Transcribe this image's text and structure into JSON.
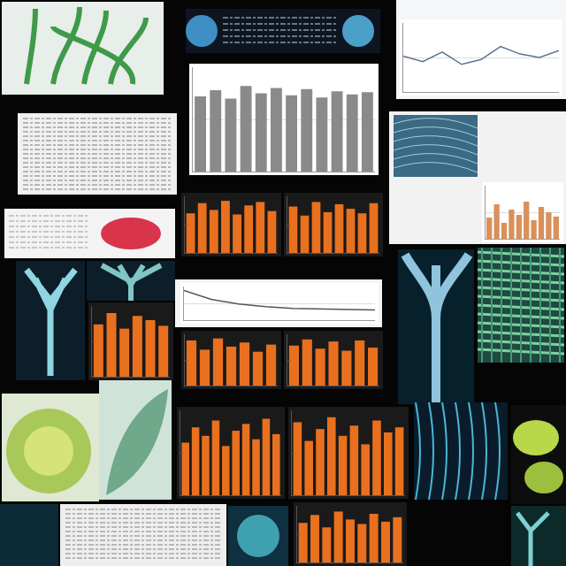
{
  "chart_data": [
    {
      "type": "line",
      "categories": [
        null,
        null,
        null,
        null,
        null,
        null,
        null,
        null,
        null
      ],
      "values": [
        52,
        44,
        58,
        40,
        47,
        66,
        55,
        50,
        60
      ],
      "color": "#5b7391",
      "ylim": [
        0,
        100
      ],
      "yticks": [
        0,
        50,
        100
      ],
      "grid": true,
      "tick_labels": false
    },
    {
      "type": "bar",
      "categories": [
        null,
        null,
        null,
        null,
        null,
        null,
        null,
        null,
        null,
        null,
        null,
        null
      ],
      "values": [
        72,
        78,
        70,
        82,
        75,
        80,
        73,
        79,
        71,
        77,
        74,
        76
      ],
      "color": "#8a8a8a",
      "ylim": [
        0,
        100
      ],
      "yticks": [
        0,
        50,
        100
      ],
      "grid": true,
      "tick_labels": false
    },
    {
      "type": "bar",
      "categories": [
        null,
        null,
        null,
        null,
        null,
        null,
        null,
        null
      ],
      "values": [
        70,
        88,
        76,
        92,
        68,
        84,
        90,
        74
      ],
      "color": "#e8701f",
      "ylim": [
        0,
        100
      ],
      "yticks": [
        0,
        50,
        100
      ],
      "grid": false,
      "tick_labels": false
    },
    {
      "type": "bar",
      "categories": [
        null,
        null,
        null,
        null,
        null,
        null,
        null,
        null
      ],
      "values": [
        82,
        66,
        90,
        72,
        86,
        78,
        70,
        88
      ],
      "color": "#e8701f",
      "ylim": [
        0,
        100
      ],
      "yticks": [
        0,
        50,
        100
      ],
      "grid": false,
      "tick_labels": false
    },
    {
      "type": "bar",
      "categories": [
        null,
        null,
        null,
        null,
        null,
        null
      ],
      "values": [
        74,
        90,
        68,
        86,
        80,
        72
      ],
      "color": "#e8701f",
      "ylim": [
        0,
        100
      ],
      "yticks": [
        0,
        50,
        100
      ],
      "grid": false,
      "tick_labels": false
    },
    {
      "type": "bar",
      "categories": [
        null,
        null,
        null,
        null,
        null,
        null,
        null
      ],
      "values": [
        88,
        70,
        92,
        76,
        84,
        66,
        80
      ],
      "color": "#e8701f",
      "ylim": [
        0,
        100
      ],
      "yticks": [
        0,
        50,
        100
      ],
      "grid": false,
      "tick_labels": false
    },
    {
      "type": "bar",
      "categories": [
        null,
        null,
        null,
        null,
        null,
        null,
        null
      ],
      "values": [
        78,
        90,
        72,
        86,
        68,
        88,
        74
      ],
      "color": "#e8701f",
      "ylim": [
        0,
        100
      ],
      "yticks": [
        0,
        50,
        100
      ],
      "grid": false,
      "tick_labels": false
    },
    {
      "type": "bar",
      "categories": [
        null,
        null,
        null,
        null,
        null,
        null,
        null,
        null,
        null,
        null
      ],
      "values": [
        62,
        80,
        70,
        88,
        58,
        76,
        84,
        66,
        90,
        72
      ],
      "color": "#e8701f",
      "ylim": [
        0,
        100
      ],
      "yticks": [
        0,
        50,
        100
      ],
      "grid": false,
      "tick_labels": false
    },
    {
      "type": "bar",
      "categories": [
        null,
        null,
        null,
        null,
        null,
        null,
        null,
        null,
        null,
        null
      ],
      "values": [
        86,
        64,
        78,
        92,
        70,
        82,
        60,
        88,
        74,
        80
      ],
      "color": "#e8701f",
      "ylim": [
        0,
        100
      ],
      "yticks": [
        0,
        50,
        100
      ],
      "grid": false,
      "tick_labels": false
    },
    {
      "type": "bar",
      "categories": [
        null,
        null,
        null,
        null,
        null,
        null,
        null,
        null,
        null
      ],
      "values": [
        70,
        84,
        62,
        90,
        76,
        68,
        86,
        72,
        80
      ],
      "color": "#e8701f",
      "ylim": [
        0,
        100
      ],
      "yticks": [
        0,
        50,
        100
      ],
      "grid": false,
      "tick_labels": false
    },
    {
      "type": "line",
      "categories": [
        null,
        null,
        null,
        null,
        null,
        null,
        null,
        null
      ],
      "values": [
        88,
        62,
        48,
        40,
        35,
        33,
        31,
        30
      ],
      "color": "#555555",
      "ylim": [
        0,
        100
      ],
      "yticks": [
        0,
        50,
        100
      ],
      "grid": true,
      "tick_labels": false
    },
    {
      "type": "bar",
      "categories": [
        null,
        null,
        null,
        null,
        null,
        null,
        null,
        null,
        null,
        null
      ],
      "values": [
        40,
        65,
        30,
        55,
        45,
        70,
        35,
        60,
        50,
        42
      ],
      "color": "#d9905a",
      "ylim": [
        0,
        100
      ],
      "yticks": [
        0,
        50,
        100
      ],
      "grid": true,
      "tick_labels": false
    }
  ]
}
